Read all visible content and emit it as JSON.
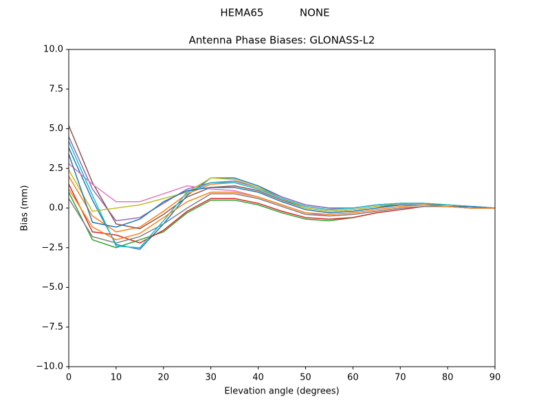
{
  "chart_data": {
    "type": "line",
    "suptitle": "HEMA65           NONE",
    "title": "Antenna Phase Biases: GLONASS-L2",
    "xlabel": "Elevation angle (degrees)",
    "ylabel": "Bias (mm)",
    "x": [
      0,
      5,
      10,
      15,
      20,
      25,
      30,
      35,
      40,
      45,
      50,
      55,
      60,
      65,
      70,
      75,
      80,
      85,
      90
    ],
    "xlim": [
      0,
      90
    ],
    "xticks": [
      0,
      10,
      20,
      30,
      40,
      50,
      60,
      70,
      80,
      90
    ],
    "ylim": [
      -10,
      10
    ],
    "yticks": [
      {
        "value": -10,
        "label": "−10.0"
      },
      {
        "value": -7.5,
        "label": "−7.5"
      },
      {
        "value": -5,
        "label": "−5.0"
      },
      {
        "value": -2.5,
        "label": "−2.5"
      },
      {
        "value": 0,
        "label": "0.0"
      },
      {
        "value": 2.5,
        "label": "2.5"
      },
      {
        "value": 5,
        "label": "5.0"
      },
      {
        "value": 7.5,
        "label": "7.5"
      },
      {
        "value": 10,
        "label": "10.0"
      }
    ],
    "grid": false,
    "series": [
      {
        "color": "#1f77b4",
        "values": [
          3.8,
          0.5,
          -2.3,
          -2.6,
          -1.0,
          0.8,
          1.9,
          1.9,
          1.4,
          0.7,
          0.2,
          0.0,
          0.0,
          0.2,
          0.3,
          0.3,
          0.2,
          0.1,
          0.0
        ]
      },
      {
        "color": "#ff7f0e",
        "values": [
          2.0,
          -0.5,
          -1.5,
          -1.2,
          -0.2,
          0.9,
          1.5,
          1.6,
          1.2,
          0.6,
          0.1,
          -0.1,
          0.0,
          0.2,
          0.3,
          0.3,
          0.2,
          0.1,
          0.0
        ]
      },
      {
        "color": "#2ca02c",
        "values": [
          1.0,
          -2.0,
          -2.5,
          -2.0,
          -1.5,
          -0.3,
          0.5,
          0.5,
          0.2,
          -0.3,
          -0.7,
          -0.8,
          -0.6,
          -0.3,
          -0.1,
          0.1,
          0.1,
          0.0,
          0.0
        ]
      },
      {
        "color": "#d62728",
        "values": [
          1.5,
          -1.5,
          -1.7,
          -2.2,
          -1.4,
          -0.2,
          0.6,
          0.6,
          0.3,
          -0.2,
          -0.6,
          -0.7,
          -0.6,
          -0.3,
          -0.1,
          0.1,
          0.1,
          0.0,
          0.0
        ]
      },
      {
        "color": "#9467bd",
        "values": [
          4.5,
          1.2,
          -0.8,
          -0.6,
          0.3,
          1.2,
          1.6,
          1.7,
          1.3,
          0.7,
          0.2,
          0.0,
          0.0,
          0.2,
          0.3,
          0.3,
          0.2,
          0.1,
          0.0
        ]
      },
      {
        "color": "#8c564b",
        "values": [
          5.2,
          1.6,
          -1.0,
          -1.3,
          -0.4,
          0.7,
          1.3,
          1.4,
          1.1,
          0.5,
          0.0,
          -0.2,
          -0.1,
          0.1,
          0.2,
          0.2,
          0.2,
          0.1,
          0.0
        ]
      },
      {
        "color": "#e377c2",
        "values": [
          2.8,
          1.5,
          0.4,
          0.4,
          0.9,
          1.4,
          1.2,
          1.1,
          0.7,
          0.2,
          -0.3,
          -0.5,
          -0.4,
          -0.2,
          0.0,
          0.1,
          0.1,
          0.0,
          0.0
        ]
      },
      {
        "color": "#7f7f7f",
        "values": [
          0.6,
          -1.8,
          -2.2,
          -1.8,
          -1.0,
          0.0,
          0.9,
          0.9,
          0.6,
          0.1,
          -0.4,
          -0.5,
          -0.4,
          -0.2,
          0.0,
          0.1,
          0.1,
          0.0,
          0.0
        ]
      },
      {
        "color": "#bcbd22",
        "values": [
          2.4,
          -0.2,
          0.0,
          0.2,
          0.6,
          1.0,
          1.9,
          1.8,
          1.3,
          0.6,
          0.0,
          -0.2,
          -0.1,
          0.1,
          0.3,
          0.3,
          0.2,
          0.1,
          0.0
        ]
      },
      {
        "color": "#17becf",
        "values": [
          4.2,
          0.8,
          -2.4,
          -2.5,
          -0.8,
          1.0,
          1.6,
          1.6,
          1.2,
          0.6,
          0.1,
          -0.1,
          0.0,
          0.2,
          0.3,
          0.3,
          0.2,
          0.1,
          0.0
        ]
      },
      {
        "color": "#1f77b4",
        "values": [
          3.4,
          -0.9,
          -1.2,
          -0.7,
          0.4,
          1.1,
          1.3,
          1.3,
          1.0,
          0.4,
          -0.1,
          -0.3,
          -0.2,
          0.0,
          0.2,
          0.2,
          0.1,
          0.1,
          0.0
        ]
      },
      {
        "color": "#ff7f0e",
        "values": [
          1.2,
          -1.2,
          -2.0,
          -1.6,
          -0.6,
          0.4,
          1.0,
          1.0,
          0.7,
          0.2,
          -0.3,
          -0.4,
          -0.3,
          -0.1,
          0.1,
          0.2,
          0.1,
          0.0,
          0.0
        ]
      }
    ]
  }
}
